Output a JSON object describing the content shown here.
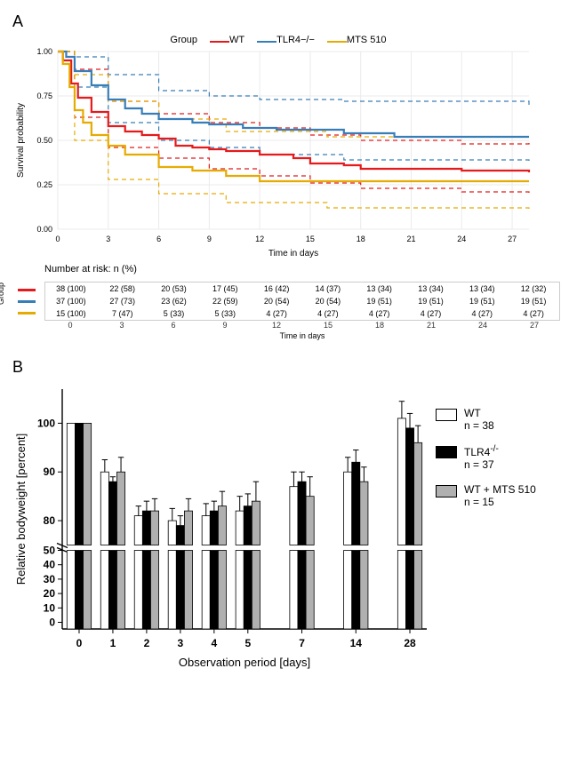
{
  "panelA": {
    "label": "A",
    "legend_title": "Group",
    "groups": [
      {
        "key": "wt",
        "label": "WT",
        "color": "#E41A1C"
      },
      {
        "key": "tlr4",
        "label": "TLR4−/−",
        "color": "#377EB8"
      },
      {
        "key": "mts",
        "label": "MTS 510",
        "color": "#E6AB02"
      }
    ],
    "chart": {
      "type": "survival_step",
      "xlim": [
        0,
        28
      ],
      "ylim": [
        0,
        1.0
      ],
      "xticks": [
        0,
        3,
        6,
        9,
        12,
        15,
        18,
        21,
        24,
        27
      ],
      "yticks": [
        0,
        0.25,
        0.5,
        0.75,
        1.0
      ],
      "xlabel": "Time in days",
      "ylabel": "Survival probability",
      "grid_color": "#ebebeb",
      "background": "#ffffff",
      "label_fontsize": 10,
      "tick_fontsize": 9
    },
    "survival": {
      "wt": {
        "t": [
          0,
          0.3,
          0.8,
          1.2,
          2,
          3,
          4,
          5,
          6,
          7,
          8,
          9,
          10,
          12,
          14,
          15,
          17,
          18,
          20,
          24,
          28
        ],
        "s": [
          1.0,
          0.95,
          0.82,
          0.74,
          0.66,
          0.58,
          0.55,
          0.53,
          0.51,
          0.47,
          0.46,
          0.45,
          0.44,
          0.42,
          0.4,
          0.37,
          0.36,
          0.34,
          0.34,
          0.33,
          0.32
        ]
      },
      "tlr4": {
        "t": [
          0,
          0.5,
          1,
          2,
          3,
          4,
          5,
          6,
          8,
          9,
          11,
          13,
          17,
          20,
          28
        ],
        "s": [
          1.0,
          0.97,
          0.89,
          0.81,
          0.73,
          0.68,
          0.65,
          0.62,
          0.6,
          0.59,
          0.57,
          0.56,
          0.54,
          0.52,
          0.52
        ]
      },
      "mts": {
        "t": [
          0,
          0.3,
          0.7,
          1,
          1.5,
          2,
          3,
          4,
          6,
          8,
          10,
          12,
          20,
          28
        ],
        "s": [
          1.0,
          0.93,
          0.8,
          0.67,
          0.6,
          0.53,
          0.47,
          0.42,
          0.35,
          0.33,
          0.3,
          0.27,
          0.27,
          0.27
        ]
      }
    },
    "ci": {
      "wt_up": {
        "t": [
          0,
          1,
          3,
          6,
          9,
          12,
          15,
          18,
          24,
          28
        ],
        "s": [
          1.0,
          0.9,
          0.72,
          0.65,
          0.6,
          0.57,
          0.53,
          0.5,
          0.48,
          0.5
        ]
      },
      "wt_lo": {
        "t": [
          0,
          1,
          3,
          6,
          9,
          12,
          15,
          18,
          24,
          28
        ],
        "s": [
          1.0,
          0.63,
          0.46,
          0.4,
          0.34,
          0.3,
          0.26,
          0.23,
          0.21,
          0.19
        ]
      },
      "tlr4_up": {
        "t": [
          0,
          1,
          3,
          6,
          9,
          12,
          17,
          28
        ],
        "s": [
          1.0,
          0.97,
          0.87,
          0.78,
          0.75,
          0.73,
          0.72,
          0.7
        ]
      },
      "tlr4_lo": {
        "t": [
          0,
          1,
          3,
          6,
          9,
          12,
          17,
          28
        ],
        "s": [
          1.0,
          0.8,
          0.6,
          0.5,
          0.46,
          0.42,
          0.39,
          0.37
        ]
      },
      "mts_up": {
        "t": [
          0,
          1,
          3,
          6,
          10,
          16,
          28
        ],
        "s": [
          1.0,
          0.87,
          0.72,
          0.62,
          0.55,
          0.52,
          0.52
        ]
      },
      "mts_lo": {
        "t": [
          0,
          1,
          3,
          6,
          10,
          16,
          28
        ],
        "s": [
          1.0,
          0.5,
          0.28,
          0.2,
          0.15,
          0.12,
          0.11
        ]
      }
    },
    "risk_table": {
      "header": "Number at risk: n (%)",
      "x_axis_label": "Time in days",
      "group_axis_label": "Group",
      "times": [
        0,
        3,
        6,
        9,
        12,
        15,
        18,
        21,
        24,
        27
      ],
      "rows": [
        {
          "color": "#E41A1C",
          "cells": [
            "38 (100)",
            "22 (58)",
            "20 (53)",
            "17 (45)",
            "16 (42)",
            "14 (37)",
            "13 (34)",
            "13 (34)",
            "13 (34)",
            "12 (32)"
          ]
        },
        {
          "color": "#377EB8",
          "cells": [
            "37 (100)",
            "27 (73)",
            "23 (62)",
            "22 (59)",
            "20 (54)",
            "20 (54)",
            "19 (51)",
            "19 (51)",
            "19 (51)",
            "19 (51)"
          ]
        },
        {
          "color": "#E6AB02",
          "cells": [
            "15 (100)",
            "7 (47)",
            "5 (33)",
            "5 (33)",
            "4 (27)",
            "4 (27)",
            "4 (27)",
            "4 (27)",
            "4 (27)",
            "4 (27)"
          ]
        }
      ]
    }
  },
  "panelB": {
    "label": "B",
    "chart": {
      "type": "bar_grouped_broken_axis",
      "xlabel": "Observation period [days]",
      "ylabel": "Relative bodyweight [percent]",
      "categories": [
        "0",
        "1",
        "2",
        "3",
        "4",
        "5",
        "7",
        "14",
        "28"
      ],
      "yticks_lower": [
        0,
        10,
        20,
        30,
        40,
        50
      ],
      "yticks_upper": [
        80,
        90,
        100
      ],
      "label_fontsize": 13,
      "tick_fontsize": 12,
      "bar_border": "#000000",
      "axis_color": "#000000",
      "background": "#ffffff"
    },
    "legend": [
      {
        "label": "WT",
        "n": "n = 38",
        "fill": "#ffffff"
      },
      {
        "label": "TLR4",
        "sup": "-/-",
        "n": "n = 37",
        "fill": "#000000"
      },
      {
        "label": "WT + MTS 510",
        "n": "n = 15",
        "fill": "#b0b0b0"
      }
    ],
    "data": {
      "wt": {
        "mean": [
          100,
          90,
          81,
          80,
          81,
          82,
          87,
          90,
          101
        ],
        "err": [
          0,
          2.5,
          2,
          2.5,
          2.5,
          3,
          3,
          3,
          3.5
        ]
      },
      "tlr4": {
        "mean": [
          100,
          88,
          82,
          79,
          82,
          83,
          88,
          92,
          99
        ],
        "err": [
          0,
          1,
          2,
          2,
          2,
          2.5,
          2,
          2.5,
          3
        ]
      },
      "mts": {
        "mean": [
          100,
          90,
          82,
          82,
          83,
          84,
          85,
          88,
          96
        ],
        "err": [
          0,
          3,
          2.5,
          2.5,
          3,
          4,
          4,
          3,
          3.5
        ]
      }
    }
  }
}
